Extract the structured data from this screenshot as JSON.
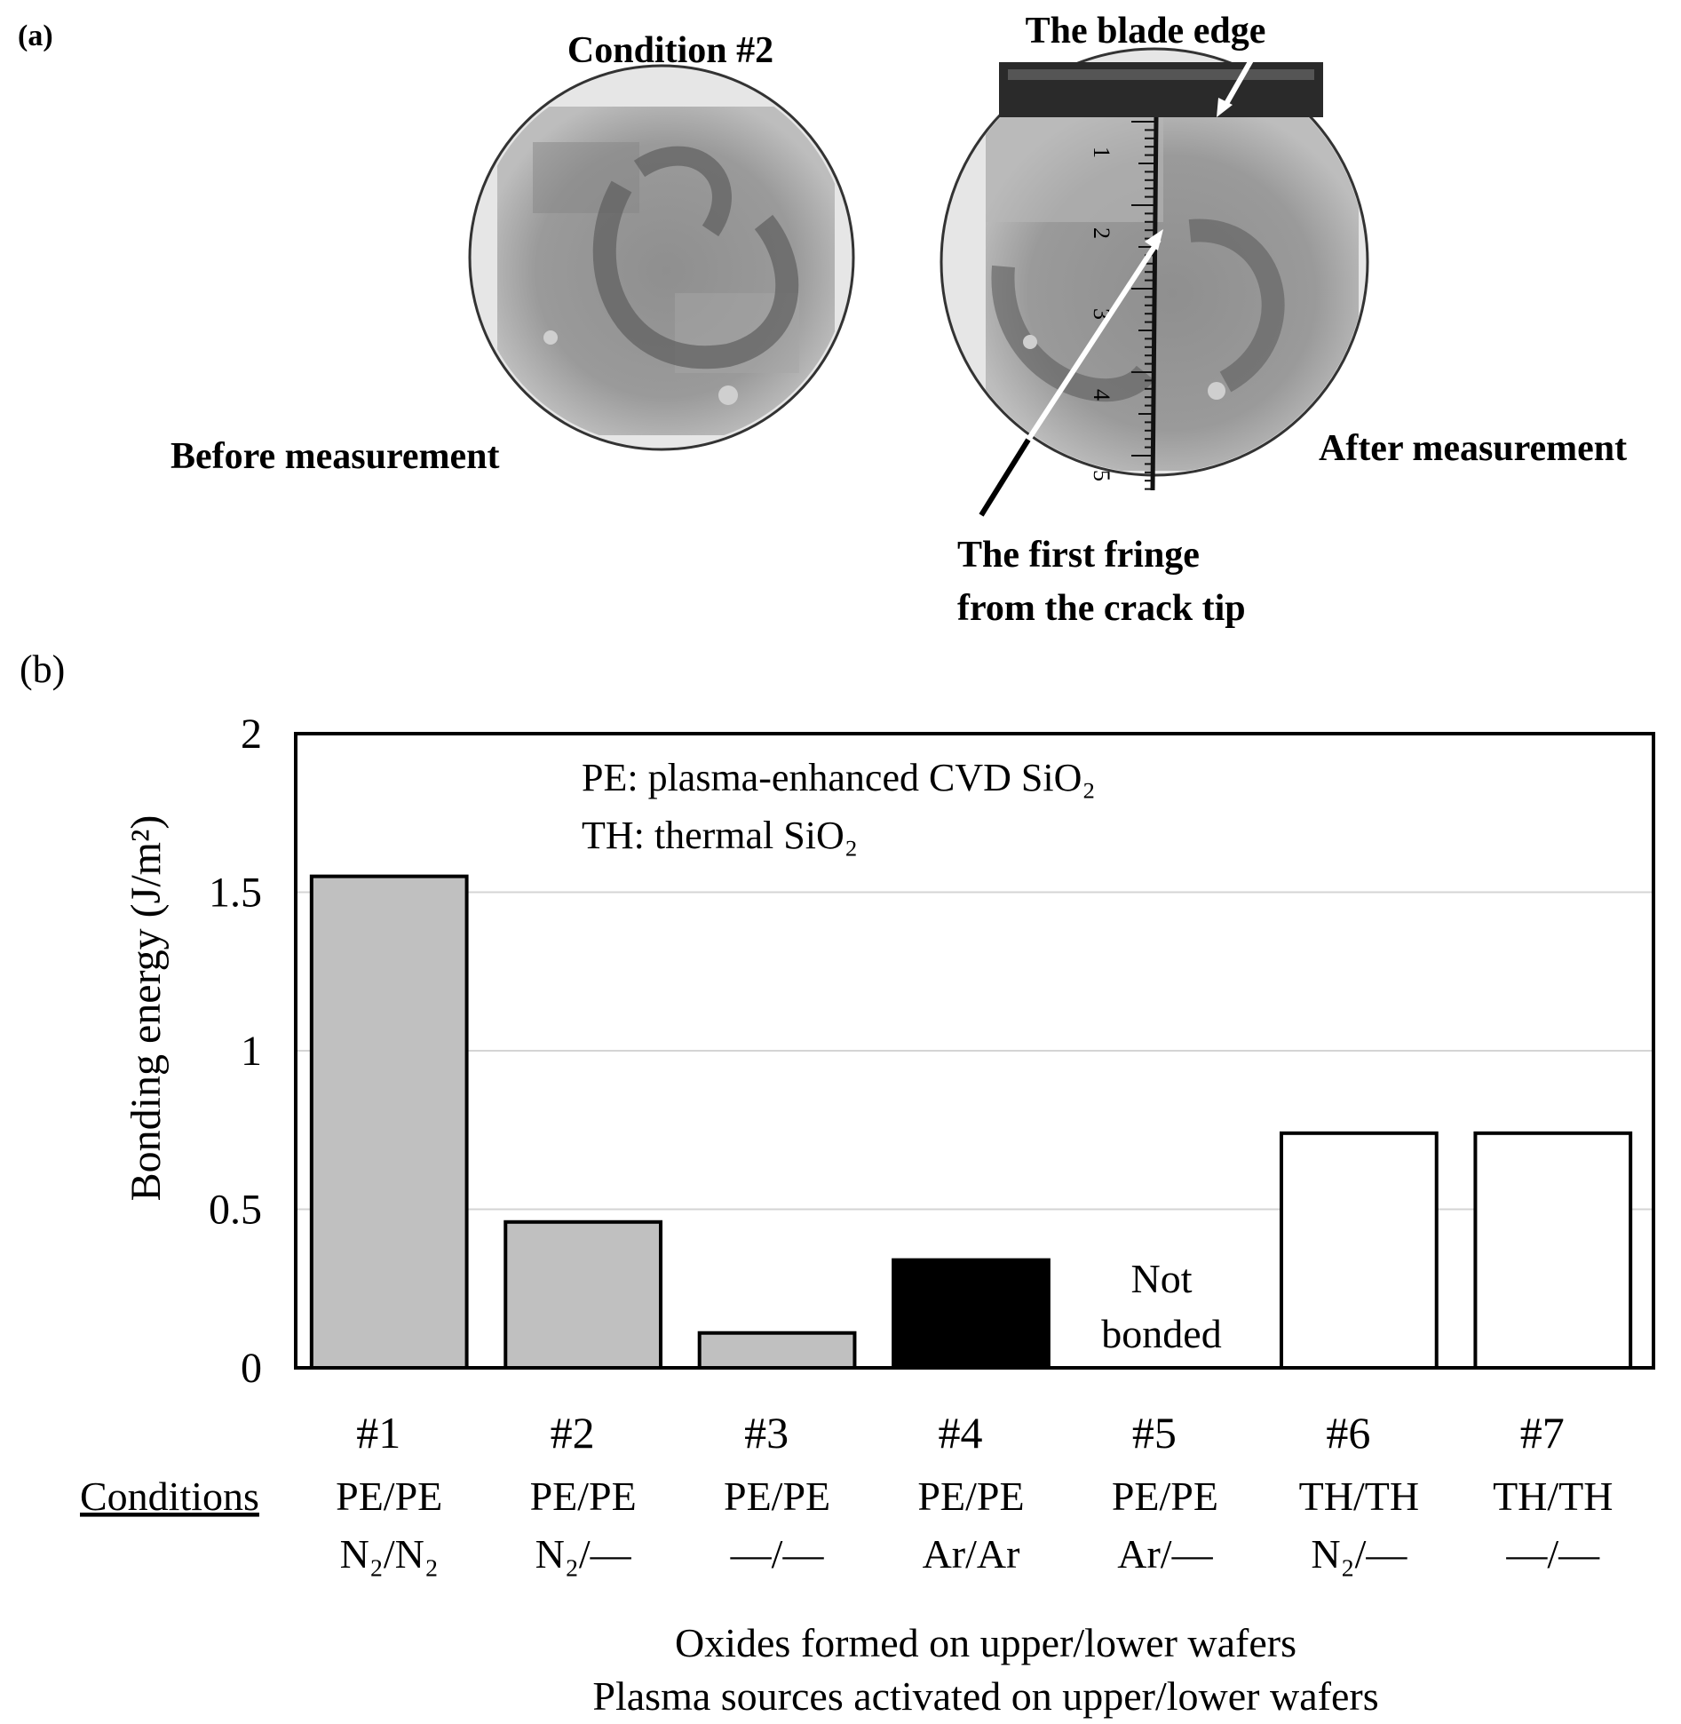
{
  "panel_a": {
    "label": "(a)",
    "condition_title": "Condition #2",
    "before_caption": "Before measurement",
    "after_caption": "After measurement",
    "blade_edge_caption": "The blade edge",
    "fringe_caption_line1": "The first fringe",
    "fringe_caption_line2": "from the crack tip",
    "ruler_numbers": [
      "1",
      "2",
      "3",
      "4",
      "5"
    ]
  },
  "panel_b": {
    "label": "(b)"
  },
  "chart_data": {
    "type": "bar",
    "ylabel": "Bonding energy (J/m²)",
    "ylim": [
      0,
      2
    ],
    "yticks": [
      "0",
      "0.5",
      "1",
      "1.5",
      "2"
    ],
    "grid": true,
    "categories": [
      "#1",
      "#2",
      "#3",
      "#4",
      "#5",
      "#6",
      "#7"
    ],
    "values": [
      1.55,
      0.46,
      0.11,
      0.34,
      null,
      0.74,
      0.74
    ],
    "bar_colors": [
      "#c0c0c0",
      "#c0c0c0",
      "#c0c0c0",
      "#000000",
      "#ffffff",
      "#ffffff",
      "#ffffff"
    ],
    "condition_oxides": [
      "PE/PE",
      "PE/PE",
      "PE/PE",
      "PE/PE",
      "PE/PE",
      "TH/TH",
      "TH/TH"
    ],
    "condition_plasma": [
      "N₂/N₂",
      "N₂/—",
      "—/—",
      "Ar/Ar",
      "Ar/—",
      "N₂/—",
      "—/—"
    ],
    "conditions_heading": "Conditions",
    "not_bonded_line1": "Not",
    "not_bonded_line2": "bonded",
    "legend_pe": "PE: plasma-enhanced CVD SiO₂",
    "legend_th": "TH: thermal SiO₂",
    "footer_line1": "Oxides formed on upper/lower wafers",
    "footer_line2": "Plasma sources activated on upper/lower wafers"
  }
}
